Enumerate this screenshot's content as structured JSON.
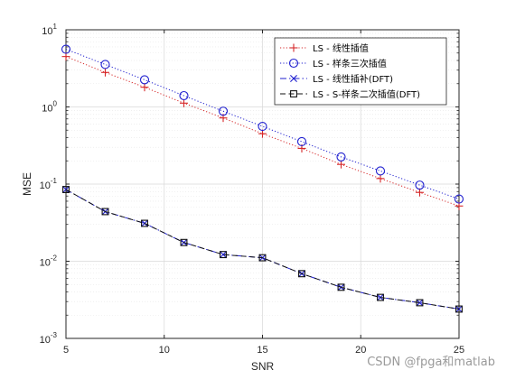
{
  "chart_data": {
    "type": "line",
    "title": "",
    "xlabel": "SNR",
    "ylabel": "MSE",
    "xlim": [
      5,
      25
    ],
    "ylim": [
      0.001,
      10
    ],
    "yscale": "log",
    "grid": "on (major and minor)",
    "legend_position": "top-right",
    "x_ticks": [
      "5",
      "10",
      "15",
      "20",
      "25"
    ],
    "y_ticks": [
      {
        "base": "10",
        "exp": "-3"
      },
      {
        "base": "10",
        "exp": "-2"
      },
      {
        "base": "10",
        "exp": "-1"
      },
      {
        "base": "10",
        "exp": "0"
      },
      {
        "base": "10",
        "exp": "1"
      }
    ],
    "x": [
      5,
      7,
      9,
      11,
      13,
      15,
      17,
      19,
      21,
      23,
      25
    ],
    "series": [
      {
        "name": "LS - 线性插值",
        "color": "#d62728",
        "line": "dotted",
        "marker": "plus",
        "values": [
          4.5,
          2.8,
          1.8,
          1.12,
          0.72,
          0.45,
          0.29,
          0.18,
          0.118,
          0.078,
          0.052
        ]
      },
      {
        "name": "LS - 样条三次插值",
        "color": "#1f1fcf",
        "line": "dotted",
        "marker": "circle",
        "values": [
          5.6,
          3.55,
          2.25,
          1.4,
          0.88,
          0.56,
          0.355,
          0.225,
          0.148,
          0.097,
          0.064
        ]
      },
      {
        "name": "LS - 线性插补(DFT)",
        "color": "#1f1fcf",
        "line": "dashdot",
        "marker": "x",
        "values": [
          0.085,
          0.044,
          0.031,
          0.0175,
          0.0122,
          0.0111,
          0.0069,
          0.0046,
          0.0034,
          0.0029,
          0.0024
        ]
      },
      {
        "name": "LS - S-样条二次插值(DFT)",
        "color": "#111111",
        "line": "dashed",
        "marker": "square",
        "values": [
          0.085,
          0.044,
          0.031,
          0.0175,
          0.0122,
          0.0111,
          0.0069,
          0.0046,
          0.0034,
          0.0029,
          0.0024
        ]
      }
    ]
  },
  "watermark": "CSDN @fpga和matlab"
}
